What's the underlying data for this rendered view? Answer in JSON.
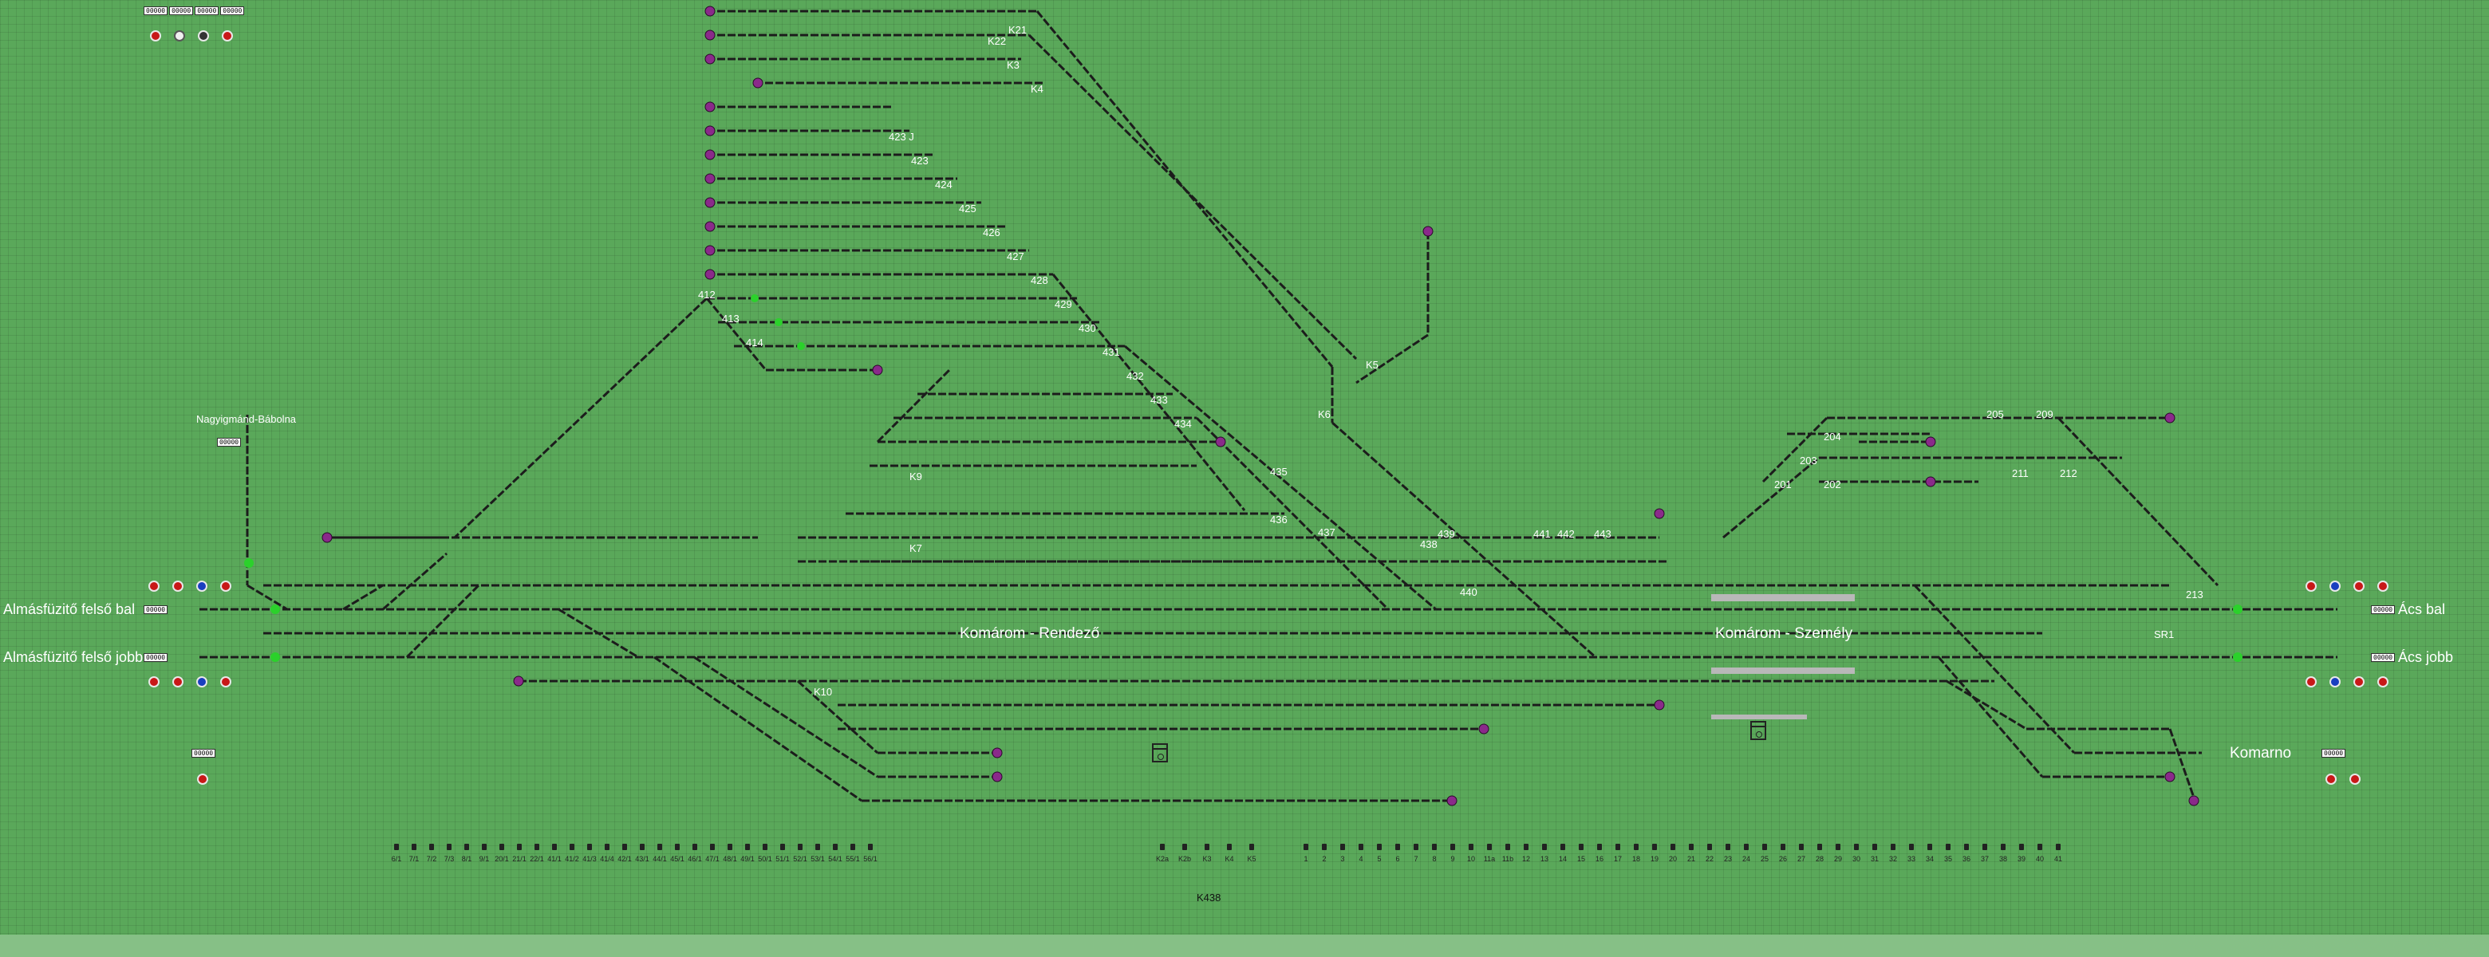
{
  "screen": {
    "colors": {
      "background": "#5aa85a",
      "track": "#1c1c1c",
      "track_dash": "#7a3a7a",
      "signal_magenta": "#8a2a8a",
      "signal_green": "#2bd12b",
      "platform": "#b4b4b4",
      "label": "#ffffff"
    }
  },
  "areas": {
    "rendezo": "Komárom - Rendező",
    "szemely": "Komárom - Személy",
    "komarno": "Komarno"
  },
  "stations": {
    "nagyigmand": "Nagyigmánd-Bábolna",
    "almasfuzito_bal": "Almásfüzitő felső bal",
    "almasfuzito_jobb": "Almásfüzitő felső jobb",
    "acs_bal": "Ács bal",
    "acs_jobb": "Ács jobb",
    "sr1": "SR1",
    "k438": "K438"
  },
  "track_labels": [
    "K21",
    "K22",
    "K3",
    "K4",
    "423 J",
    "423",
    "424",
    "425",
    "426",
    "427",
    "428",
    "429",
    "430",
    "431",
    "432",
    "433",
    "434",
    "435",
    "436",
    "437",
    "438",
    "439",
    "440",
    "441",
    "442",
    "443",
    "412",
    "413",
    "414",
    "201",
    "202",
    "203",
    "204",
    "205",
    "209",
    "211",
    "212",
    "213",
    "K5",
    "K6",
    "K7",
    "K9",
    "K10"
  ],
  "bottom_buttons": {
    "group1": [
      "6/1",
      "7/1",
      "7/2",
      "7/3",
      "8/1",
      "9/1",
      "20/1",
      "21/1",
      "22/1",
      "41/1",
      "41/2",
      "41/3",
      "41/4",
      "42/1",
      "43/1",
      "44/1",
      "45/1",
      "46/1",
      "47/1",
      "48/1",
      "49/1",
      "50/1",
      "51/1",
      "52/1",
      "53/1",
      "54/1",
      "55/1",
      "56/1"
    ],
    "group2": [
      "K2a",
      "K2b",
      "K3",
      "K4",
      "K5"
    ],
    "group3": [
      "1",
      "2",
      "3",
      "4",
      "5",
      "6",
      "7",
      "8",
      "9",
      "10",
      "11a",
      "11b",
      "12",
      "13",
      "14",
      "15",
      "16",
      "17",
      "18",
      "19",
      "20",
      "21",
      "22",
      "23",
      "24",
      "25",
      "26",
      "27",
      "28",
      "29",
      "30",
      "31",
      "32",
      "33",
      "34",
      "35",
      "36",
      "37",
      "38",
      "39",
      "40",
      "41"
    ]
  }
}
